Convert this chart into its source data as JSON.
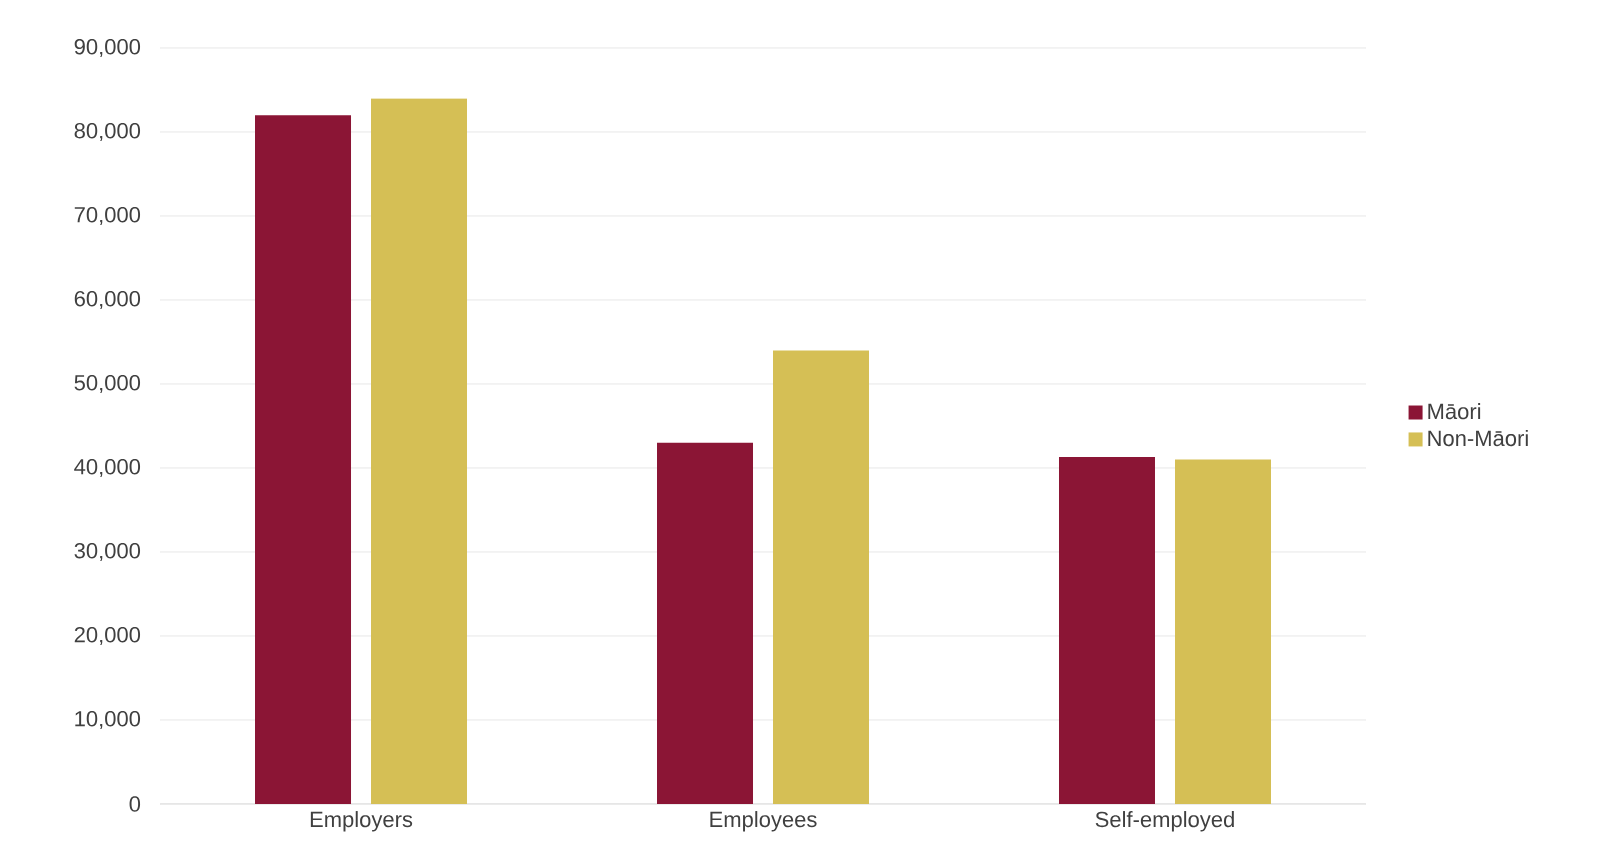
{
  "chart_data": {
    "type": "bar",
    "categories": [
      "Employers",
      "Employees",
      "Self-employed"
    ],
    "series": [
      {
        "name": "Māori",
        "color": "#8b1535",
        "values": [
          82000,
          43000,
          41300
        ]
      },
      {
        "name": "Non-Māori",
        "color": "#d5bf55",
        "values": [
          84000,
          54000,
          41000
        ]
      }
    ],
    "ylim": [
      0,
      90000
    ],
    "yticks": [
      {
        "value": 0,
        "label": "0"
      },
      {
        "value": 10000,
        "label": "10,000"
      },
      {
        "value": 20000,
        "label": "20,000"
      },
      {
        "value": 30000,
        "label": "30,000"
      },
      {
        "value": 40000,
        "label": "40,000"
      },
      {
        "value": 50000,
        "label": "50,000"
      },
      {
        "value": 60000,
        "label": "60,000"
      },
      {
        "value": 70000,
        "label": "70,000"
      },
      {
        "value": 80000,
        "label": "80,000"
      },
      {
        "value": 90000,
        "label": "90,000"
      }
    ],
    "grid": "y",
    "legend": "right"
  }
}
